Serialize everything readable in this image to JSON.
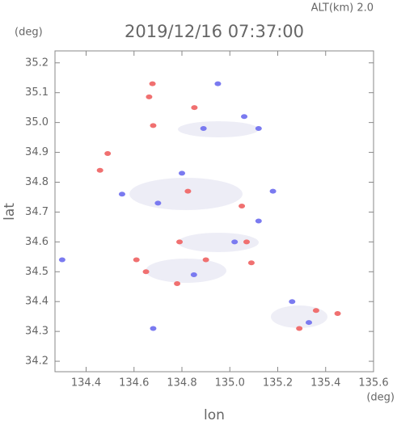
{
  "chart_data": {
    "type": "scatter",
    "title": "2019/12/16 07:37:00",
    "annotation": "ALT(km) 2.0",
    "x_label": "lon",
    "y_label": "lat",
    "x_unit": "(deg)",
    "y_unit": "(deg)",
    "xlim": [
      134.27,
      135.6
    ],
    "ylim": [
      34.165,
      35.24
    ],
    "xticks": [
      134.4,
      134.6,
      134.8,
      {
        "value": 135,
        "label": "135.0"
      },
      135.2,
      135.4,
      135.6
    ],
    "yticks": [
      34.2,
      34.3,
      34.4,
      34.5,
      34.6,
      34.7,
      34.8,
      34.9,
      {
        "value": 35,
        "label": "35.0"
      },
      35.1,
      35.2
    ],
    "series": [
      {
        "color": "#f07070",
        "x": [
          134.677,
          134.663,
          134.852,
          134.68,
          134.49,
          134.458,
          134.825,
          135.05,
          134.79,
          134.65,
          134.78,
          135.07,
          135.36,
          135.29,
          135.45,
          135.09,
          134.9,
          134.61
        ],
        "y": [
          35.13,
          35.086,
          35.05,
          34.99,
          34.896,
          34.84,
          34.77,
          34.72,
          34.6,
          34.5,
          34.46,
          34.6,
          34.37,
          34.31,
          34.36,
          34.53,
          34.54,
          34.54
        ]
      },
      {
        "color": "#7a7af0",
        "x": [
          134.3,
          134.95,
          135.06,
          135.12,
          134.89,
          134.8,
          134.7,
          135.12,
          135.18,
          135.26,
          135.33,
          135.02,
          134.85,
          134.68,
          134.55
        ],
        "y": [
          34.54,
          35.13,
          35.02,
          34.98,
          34.98,
          34.83,
          34.73,
          34.67,
          34.77,
          34.4,
          34.33,
          34.6,
          34.49,
          34.31,
          34.76
        ]
      }
    ]
  }
}
